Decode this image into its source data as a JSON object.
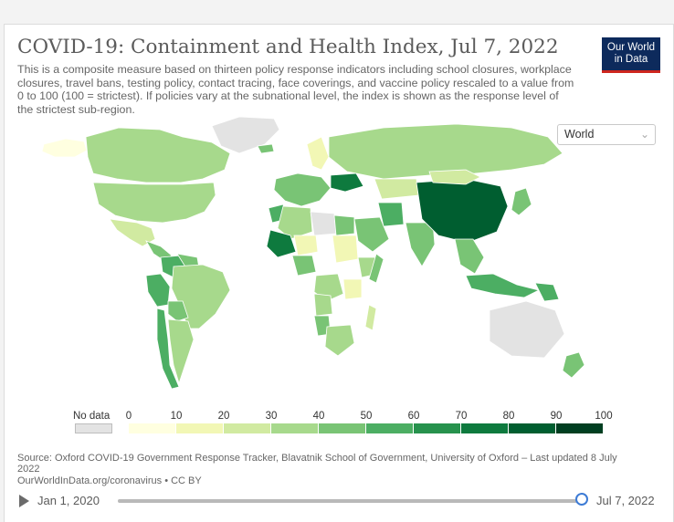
{
  "header": {
    "title": "COVID-19: Containment and Health Index, Jul 7, 2022",
    "subtitle": "This is a composite measure based on thirteen policy response indicators including school closures, workplace closures, travel bans, testing policy, contact tracing, face coverings, and vaccine policy rescaled to a value from 0 to 100 (100 = strictest). If policies vary at the subnational level, the index is shown as the response level of the strictest sub-region."
  },
  "logo": {
    "line1": "Our World",
    "line2": "in Data"
  },
  "region_select": {
    "value": "World",
    "icon": "chevron-down-icon"
  },
  "legend": {
    "no_data_label": "No data",
    "no_data_color": "#e3e3e3",
    "ticks": [
      "0",
      "10",
      "20",
      "30",
      "40",
      "50",
      "60",
      "70",
      "80",
      "90",
      "100"
    ],
    "colors": [
      "#ffffe0",
      "#f2f7b5",
      "#d1eaa1",
      "#a7d98c",
      "#79c475",
      "#4cae63",
      "#27924d",
      "#0e7a3e",
      "#005e30",
      "#003f21"
    ]
  },
  "map_data": {
    "regions": [
      {
        "name": "Alaska",
        "level": 0
      },
      {
        "name": "Canada",
        "level": 3
      },
      {
        "name": "United States",
        "level": 3
      },
      {
        "name": "Greenland",
        "level": -1
      },
      {
        "name": "Mexico",
        "level": 2
      },
      {
        "name": "Central America",
        "level": 4
      },
      {
        "name": "Colombia",
        "level": 5
      },
      {
        "name": "Venezuela",
        "level": 4
      },
      {
        "name": "Peru",
        "level": 5
      },
      {
        "name": "Brazil",
        "level": 3
      },
      {
        "name": "Bolivia",
        "level": 4
      },
      {
        "name": "Chile",
        "level": 5
      },
      {
        "name": "Argentina",
        "level": 3
      },
      {
        "name": "Iceland",
        "level": 4
      },
      {
        "name": "Scandinavia",
        "level": 1
      },
      {
        "name": "Western Europe",
        "level": 4
      },
      {
        "name": "Ukraine",
        "level": 7
      },
      {
        "name": "Russia",
        "level": 3
      },
      {
        "name": "Morocco",
        "level": 5
      },
      {
        "name": "Algeria",
        "level": 3
      },
      {
        "name": "Libya",
        "level": -1
      },
      {
        "name": "Egypt",
        "level": 4
      },
      {
        "name": "Mali",
        "level": 7
      },
      {
        "name": "Niger",
        "level": 1
      },
      {
        "name": "Sudan",
        "level": 1
      },
      {
        "name": "Nigeria",
        "level": 4
      },
      {
        "name": "Ethiopia",
        "level": 3
      },
      {
        "name": "Somalia",
        "level": 4
      },
      {
        "name": "DR Congo",
        "level": 3
      },
      {
        "name": "Tanzania",
        "level": 1
      },
      {
        "name": "Angola",
        "level": 3
      },
      {
        "name": "Namibia",
        "level": 4
      },
      {
        "name": "South Africa",
        "level": 3
      },
      {
        "name": "Madagascar",
        "level": 2
      },
      {
        "name": "Saudi Arabia",
        "level": 4
      },
      {
        "name": "Iran",
        "level": 5
      },
      {
        "name": "Kazakhstan",
        "level": 2
      },
      {
        "name": "India",
        "level": 4
      },
      {
        "name": "China",
        "level": 8
      },
      {
        "name": "Mongolia",
        "level": 2
      },
      {
        "name": "Southeast Asia",
        "level": 4
      },
      {
        "name": "Indonesia",
        "level": 5
      },
      {
        "name": "Papua New Guinea",
        "level": 5
      },
      {
        "name": "Japan",
        "level": 4
      },
      {
        "name": "Australia",
        "level": -1
      },
      {
        "name": "New Zealand",
        "level": 4
      }
    ]
  },
  "source": {
    "line1": "Source: Oxford COVID-19 Government Response Tracker, Blavatnik School of Government, University of Oxford – Last updated 8 July 2022",
    "line2": "OurWorldInData.org/coronavirus • CC BY"
  },
  "timeline": {
    "start_label": "Jan 1, 2020",
    "end_label": "Jul 7, 2022",
    "position": 1.0
  }
}
